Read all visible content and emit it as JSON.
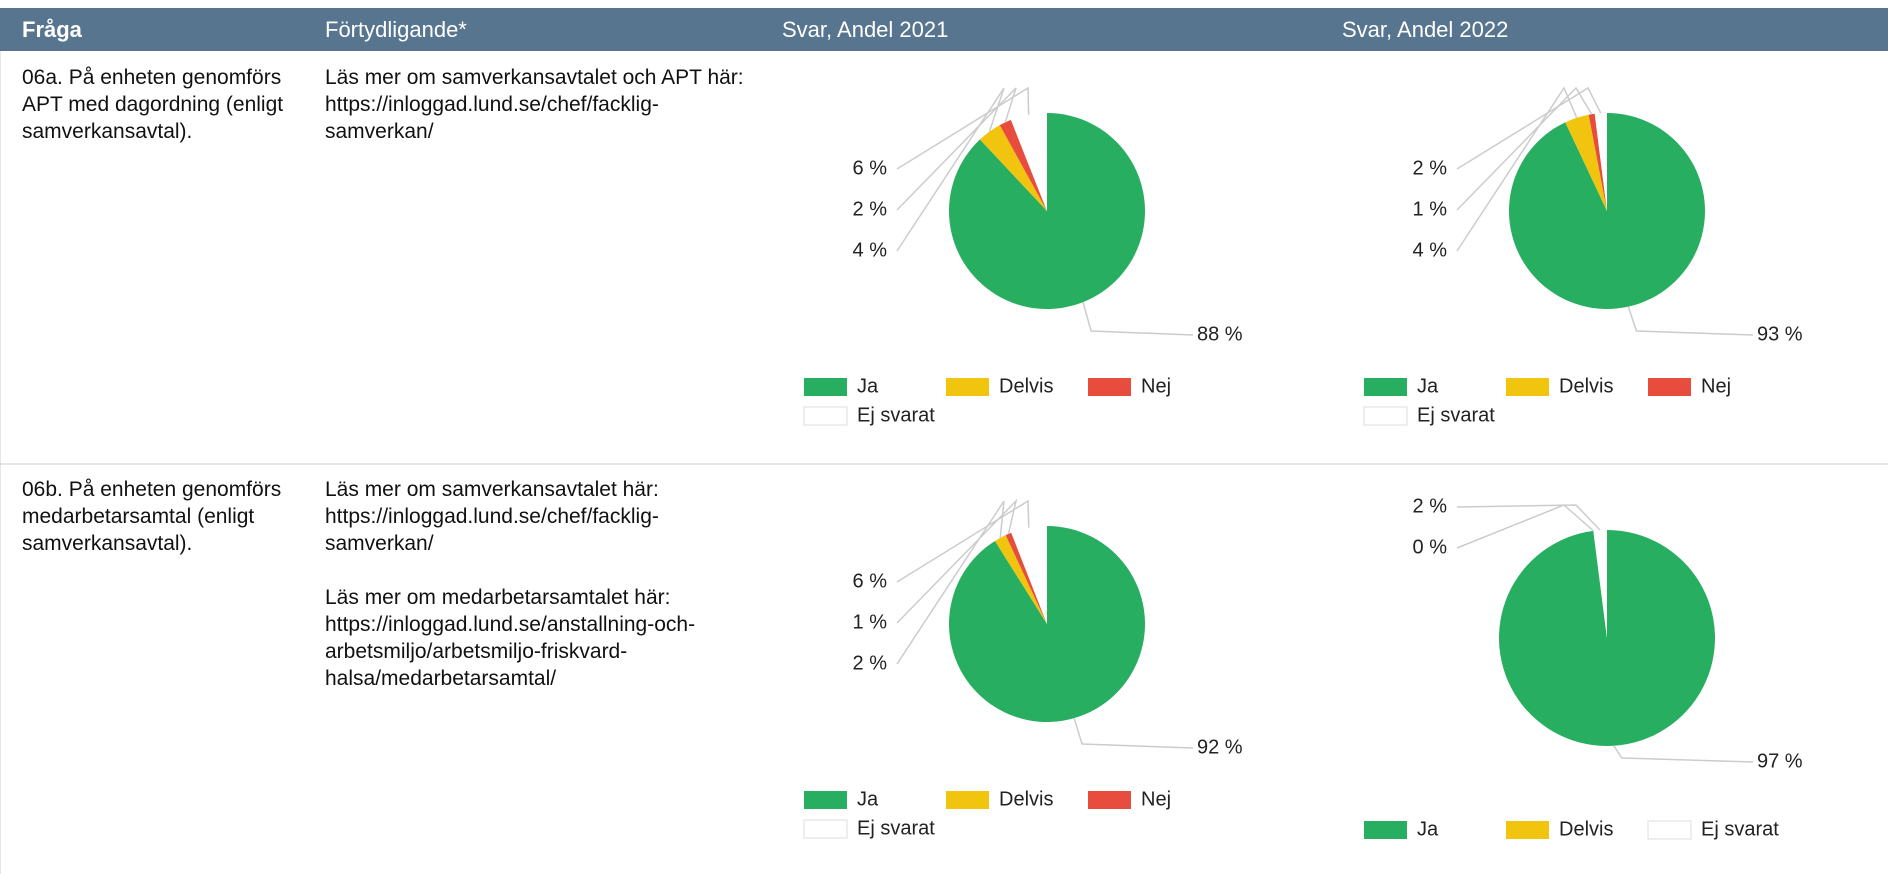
{
  "header": [
    "Fråga",
    "Förtydligande*",
    "Svar, Andel 2021",
    "Svar, Andel 2022"
  ],
  "rows": [
    {
      "question": "06a. På enheten genomförs APT med dagordning (enligt samverkansavtal).",
      "clarification": "Läs mer om samverkansavtalet och APT här:\nhttps://inloggad.lund.se/chef/facklig-samverkan/"
    },
    {
      "question": "06b. På enheten genomförs medarbetarsamtal (enligt samverkansavtal).",
      "clarification": "Läs mer om samverkansavtalet här:\nhttps://inloggad.lund.se/chef/facklig-samverkan/\n\nLäs mer om medarbetarsamtalet här:\nhttps://inloggad.lund.se/anstallning-och-arbetsmiljo/arbetsmiljo-friskvard-halsa/medarbetarsamtal/"
    }
  ],
  "chart_data": [
    {
      "type": "pie",
      "categories": [
        "Ja",
        "Delvis",
        "Nej",
        "Ej svarat"
      ],
      "values": [
        88,
        4,
        2,
        6
      ],
      "value_labels": [
        "88 %",
        "4 %",
        "2 %",
        "6 %"
      ],
      "colors": [
        "#27ae60",
        "#f1c40f",
        "#e74c3c",
        "#ffffff"
      ]
    },
    {
      "type": "pie",
      "categories": [
        "Ja",
        "Delvis",
        "Nej",
        "Ej svarat"
      ],
      "values": [
        93,
        4,
        1,
        2
      ],
      "value_labels": [
        "93 %",
        "4 %",
        "1 %",
        "2 %"
      ],
      "colors": [
        "#27ae60",
        "#f1c40f",
        "#e74c3c",
        "#ffffff"
      ]
    },
    {
      "type": "pie",
      "categories": [
        "Ja",
        "Delvis",
        "Nej",
        "Ej svarat"
      ],
      "values": [
        92,
        2,
        1,
        6
      ],
      "value_labels": [
        "92 %",
        "2 %",
        "1 %",
        "6 %"
      ],
      "colors": [
        "#27ae60",
        "#f1c40f",
        "#e74c3c",
        "#ffffff"
      ]
    },
    {
      "type": "pie",
      "categories": [
        "Ja",
        "Delvis",
        "Ej svarat"
      ],
      "values": [
        97,
        0,
        2
      ],
      "value_labels": [
        "97 %",
        "0 %",
        "2 %"
      ],
      "colors": [
        "#27ae60",
        "#f1c40f",
        "#ffffff"
      ]
    }
  ]
}
